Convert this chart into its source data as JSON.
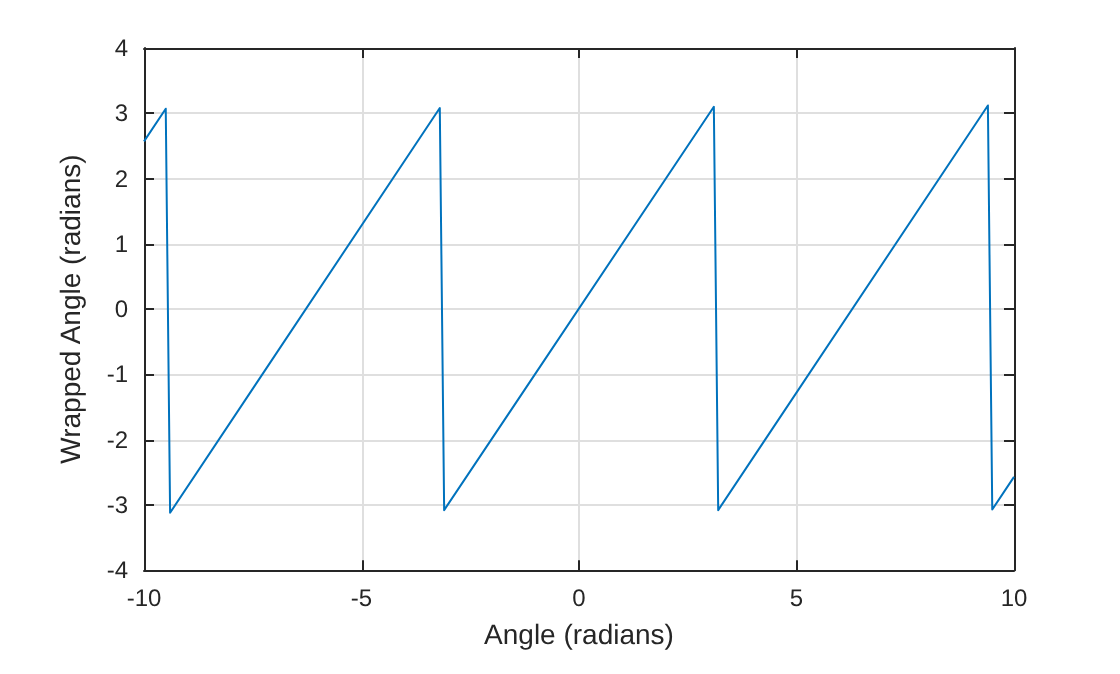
{
  "chart_data": {
    "type": "line",
    "xlabel": "Angle (radians)",
    "ylabel": "Wrapped Angle (radians)",
    "x": [
      -10,
      -9.5,
      -9.4,
      -3.2,
      -3.1,
      3.1,
      3.2,
      9.4,
      9.5,
      10
    ],
    "series": [
      {
        "color": "#0072bd",
        "values": [
          2.57,
          3.07,
          -3.12,
          3.08,
          -3.08,
          3.1,
          -3.08,
          3.12,
          -3.07,
          -2.57
        ]
      }
    ],
    "xlim": [
      -10,
      10
    ],
    "xticks": [
      -10,
      -5,
      0,
      5,
      10
    ],
    "ylim": [
      -4,
      4
    ],
    "yticks": [
      -4,
      -3,
      -2,
      -1,
      0,
      1,
      2,
      3,
      4
    ],
    "grid": true,
    "marker": "none",
    "line_style": "solid"
  }
}
